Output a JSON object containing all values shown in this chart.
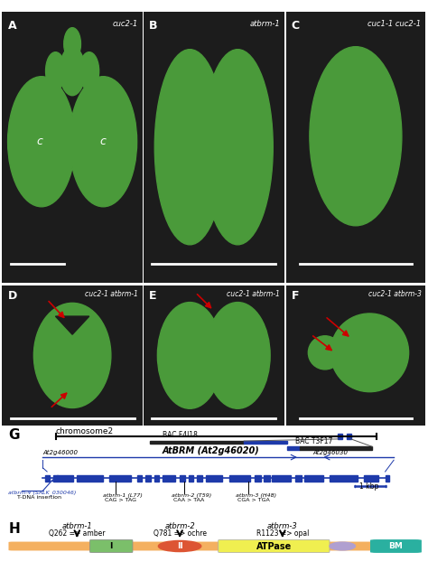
{
  "panel_labels_top": [
    "A",
    "B",
    "C"
  ],
  "panel_labels_bot": [
    "D",
    "E",
    "F"
  ],
  "italic_labels_top": [
    "cuc2-1",
    "atbrm-1",
    "cuc1-1 cuc2-1"
  ],
  "italic_labels_bot": [
    "cuc2-1 atbrm-1",
    "cuc2-1 atbrm-1",
    "cuc2-1 atbrm-3"
  ],
  "photo_bg": "#1c1c1c",
  "plant_green": "#4a9a3a",
  "plant_green_dark": "#3a8030",
  "white": "#ffffff",
  "red_arrow": "#cc0000",
  "blue": "#2233aa",
  "gene_blue": "#1e3aaa",
  "bac_dark": "#222222",
  "domain_I_color": "#7bbf6a",
  "domain_II_color": "#dd5533",
  "domain_ATPase_color": "#f0ef50",
  "domain_ellipse_color": "#b09fd0",
  "domain_BM_color": "#2ab0a0",
  "backbone_color": "#f4b060"
}
